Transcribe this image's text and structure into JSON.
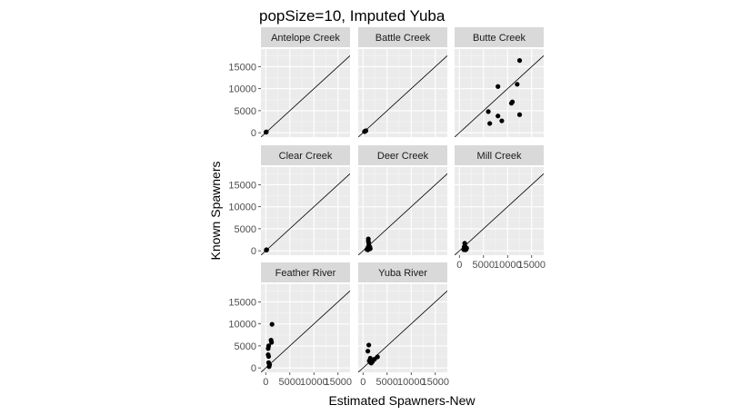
{
  "chart_data": {
    "type": "scatter",
    "title": "popSize=10, Imputed Yuba",
    "xlabel": "Estimated Spawners-New",
    "ylabel": "Known Spawners",
    "xlim": [
      -1000,
      17500
    ],
    "ylim": [
      -1000,
      19000
    ],
    "x_ticks": [
      0,
      5000,
      10000,
      15000
    ],
    "x_tick_labels": [
      "0",
      "5000",
      "10000",
      "15000"
    ],
    "y_ticks": [
      0,
      5000,
      10000,
      15000
    ],
    "y_tick_labels": [
      "0",
      "5000",
      "10000",
      "15000"
    ],
    "reference_line": "y = x",
    "grid": true,
    "facets": [
      {
        "name": "Antelope Creek",
        "points": [
          [
            80,
            150
          ],
          [
            120,
            200
          ],
          [
            60,
            100
          ]
        ]
      },
      {
        "name": "Battle Creek",
        "points": [
          [
            300,
            250
          ],
          [
            450,
            350
          ],
          [
            600,
            450
          ],
          [
            350,
            300
          ],
          [
            500,
            400
          ]
        ]
      },
      {
        "name": "Butte Creek",
        "points": [
          [
            12500,
            16400
          ],
          [
            8000,
            10500
          ],
          [
            12000,
            11000
          ],
          [
            11000,
            7000
          ],
          [
            10800,
            6700
          ],
          [
            6000,
            4800
          ],
          [
            8000,
            3800
          ],
          [
            12500,
            4100
          ],
          [
            8800,
            2700
          ],
          [
            6300,
            2100
          ]
        ]
      },
      {
        "name": "Clear Creek",
        "points": [
          [
            100,
            150
          ],
          [
            150,
            250
          ],
          [
            200,
            200
          ]
        ]
      },
      {
        "name": "Deer Creek",
        "points": [
          [
            1100,
            2700
          ],
          [
            1100,
            2200
          ],
          [
            1200,
            1700
          ],
          [
            1200,
            1200
          ],
          [
            1000,
            700
          ],
          [
            1300,
            400
          ],
          [
            1000,
            200
          ],
          [
            1500,
            500
          ],
          [
            800,
            300
          ],
          [
            1400,
            900
          ]
        ]
      },
      {
        "name": "Mill Creek",
        "points": [
          [
            1100,
            1700
          ],
          [
            1200,
            1000
          ],
          [
            1100,
            700
          ],
          [
            1000,
            500
          ],
          [
            1300,
            400
          ],
          [
            1200,
            200
          ],
          [
            1400,
            300
          ],
          [
            900,
            250
          ],
          [
            1500,
            600
          ],
          [
            1000,
            900
          ]
        ]
      },
      {
        "name": "Feather River",
        "points": [
          [
            1300,
            9900
          ],
          [
            1100,
            6300
          ],
          [
            1200,
            5800
          ],
          [
            600,
            5000
          ],
          [
            500,
            4400
          ],
          [
            500,
            3000
          ],
          [
            600,
            2600
          ],
          [
            600,
            1200
          ],
          [
            800,
            700
          ],
          [
            700,
            300
          ]
        ]
      },
      {
        "name": "Yuba River",
        "points": [
          [
            1200,
            5200
          ],
          [
            1000,
            3800
          ],
          [
            3000,
            2500
          ],
          [
            1500,
            2200
          ],
          [
            1800,
            1800
          ],
          [
            1700,
            1100
          ],
          [
            1500,
            1300
          ],
          [
            2000,
            1500
          ],
          [
            2400,
            2000
          ],
          [
            1300,
            1600
          ]
        ]
      }
    ]
  }
}
